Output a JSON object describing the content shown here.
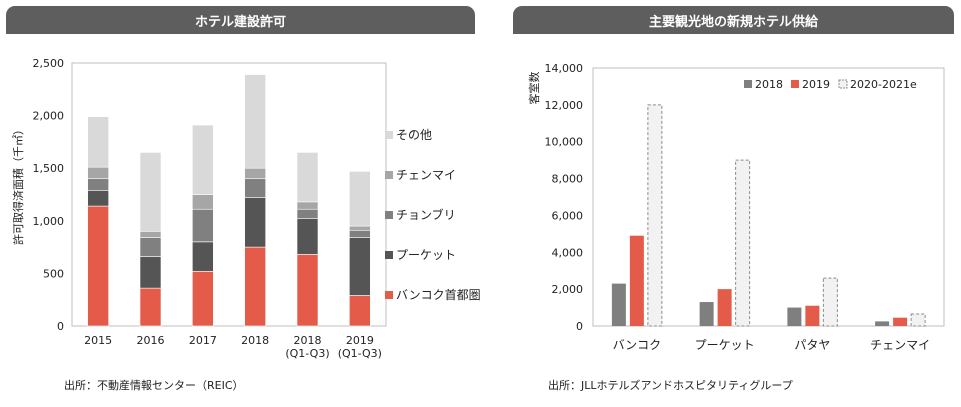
{
  "left_panel": {
    "title": "ホテル建設許可",
    "source": "出所：不動産情報センター（REIC）"
  },
  "right_panel": {
    "title": "主要観光地の新規ホテル供給",
    "source": "出所：JLLホテルズアンドホスピタリティグループ"
  },
  "colors": {
    "bangkok": "#e45b4a",
    "phuket": "#555555",
    "chonburi": "#808080",
    "chiangmai": "#a6a6a6",
    "other": "#d9d9d9",
    "y2018": "#7f7f7f",
    "y2019": "#e45b4a",
    "y2020": "#f2f2f2"
  },
  "chart_data": [
    {
      "type": "bar",
      "stacked": true,
      "title": "ホテル建設許可",
      "ylabel": "許可取得済面積（千㎡）",
      "xlabel": "",
      "ylim": [
        0,
        2500
      ],
      "yticks": [
        0,
        500,
        1000,
        1500,
        2000,
        2500
      ],
      "ytick_labels": [
        "0",
        "500",
        "1,000",
        "1,500",
        "2,000",
        "2,500"
      ],
      "grid": false,
      "legend_position": "right",
      "categories": [
        "2015",
        "2016",
        "2017",
        "2018",
        "2018\n(Q1-Q3)",
        "2019\n(Q1-Q3)"
      ],
      "category_lines": [
        [
          "2015"
        ],
        [
          "2016"
        ],
        [
          "2017"
        ],
        [
          "2018"
        ],
        [
          "2018",
          "(Q1-Q3)"
        ],
        [
          "2019",
          "(Q1-Q3)"
        ]
      ],
      "series": [
        {
          "name": "バンコク首都圏",
          "color_key": "bangkok",
          "values": [
            1140,
            360,
            520,
            750,
            680,
            290
          ]
        },
        {
          "name": "プーケット",
          "color_key": "phuket",
          "values": [
            150,
            300,
            280,
            470,
            340,
            550
          ]
        },
        {
          "name": "チョンブリ",
          "color_key": "chonburi",
          "values": [
            110,
            180,
            310,
            180,
            90,
            70
          ]
        },
        {
          "name": "チェンマイ",
          "color_key": "chiangmai",
          "values": [
            110,
            60,
            140,
            100,
            70,
            40
          ]
        },
        {
          "name": "その他",
          "color_key": "other",
          "values": [
            480,
            750,
            660,
            890,
            470,
            520
          ]
        }
      ]
    },
    {
      "type": "bar",
      "stacked": false,
      "title": "主要観光地の新規ホテル供給",
      "ylabel": "客室数",
      "xlabel": "",
      "ylim": [
        0,
        14000
      ],
      "yticks": [
        0,
        2000,
        4000,
        6000,
        8000,
        10000,
        12000,
        14000
      ],
      "ytick_labels": [
        "0",
        "2,000",
        "4,000",
        "6,000",
        "8,000",
        "10,000",
        "12,000",
        "14,000"
      ],
      "grid": false,
      "legend_position": "top-right",
      "categories": [
        "バンコク",
        "プーケット",
        "パタヤ",
        "チェンマイ"
      ],
      "series": [
        {
          "name": "2018",
          "color_key": "y2018",
          "values": [
            2300,
            1300,
            1000,
            250
          ]
        },
        {
          "name": "2019",
          "color_key": "y2019",
          "values": [
            4900,
            2000,
            1100,
            450
          ]
        },
        {
          "name": "2020-2021e",
          "color_key": "y2020",
          "dashed": true,
          "values": [
            12000,
            9000,
            2600,
            650
          ]
        }
      ]
    }
  ]
}
